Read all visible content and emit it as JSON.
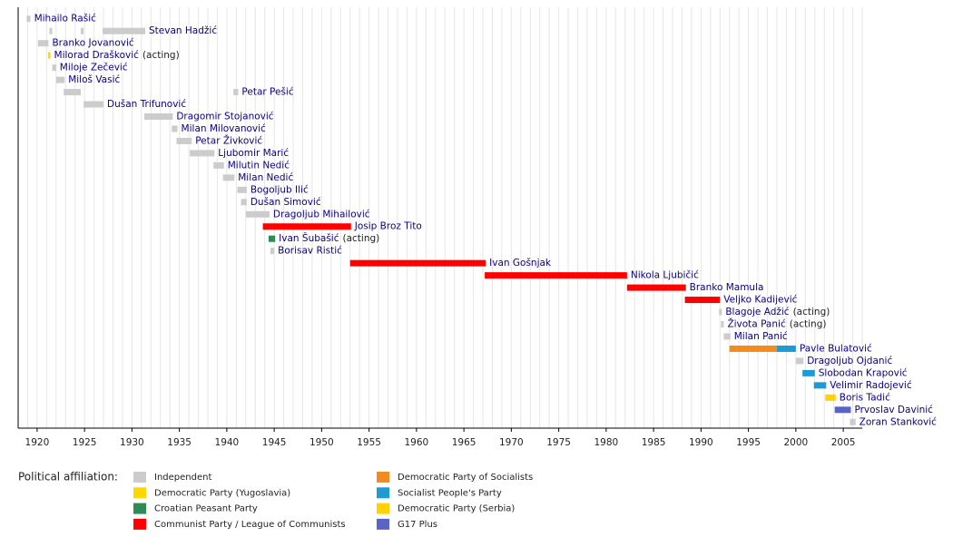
{
  "chart_data": {
    "type": "timeline",
    "xlim": [
      1918,
      2007
    ],
    "xticks": [
      1920,
      1925,
      1930,
      1935,
      1940,
      1945,
      1950,
      1955,
      1960,
      1965,
      1970,
      1975,
      1980,
      1985,
      1990,
      1995,
      2000,
      2005
    ],
    "minor_grid_step": 1,
    "legend_title": "Political affiliation:",
    "parties": [
      {
        "name": "Independent",
        "color": "#cccccc"
      },
      {
        "name": "Democratic Party (Yugoslavia)",
        "color": "#ffd700"
      },
      {
        "name": "Croatian Peasant Party",
        "color": "#2e8b57"
      },
      {
        "name": "Communist Party / League of Communists",
        "color": "#ff0000"
      },
      {
        "name": "Democratic Party of Socialists",
        "color": "#f28c1e"
      },
      {
        "name": "Socialist People's Party",
        "color": "#1e9bd2"
      },
      {
        "name": "Democratic Party (Serbia)",
        "color": "#ffd200"
      },
      {
        "name": "G17 Plus",
        "color": "#5a64c8"
      }
    ],
    "entries": [
      {
        "name": "Mihailo Rašić",
        "segments": [
          {
            "start": 1918.9,
            "end": 1919.3,
            "party": 0
          }
        ]
      },
      {
        "name": "Stevan Hadžić",
        "segments": [
          {
            "start": 1921.3,
            "end": 1921.6,
            "party": 0
          },
          {
            "start": 1924.6,
            "end": 1924.9,
            "party": 0
          },
          {
            "start": 1926.9,
            "end": 1931.4,
            "party": 0
          }
        ]
      },
      {
        "name": "Branko Jovanović",
        "segments": [
          {
            "start": 1920.1,
            "end": 1921.2,
            "party": 0
          }
        ]
      },
      {
        "name": "Milorad Drašković",
        "note": "(acting)",
        "segments": [
          {
            "start": 1921.15,
            "end": 1921.4,
            "party": 1
          }
        ]
      },
      {
        "name": "Miloje Zečević",
        "segments": [
          {
            "start": 1921.6,
            "end": 1922.0,
            "party": 0
          }
        ]
      },
      {
        "name": "Miloš Vasić",
        "segments": [
          {
            "start": 1922.0,
            "end": 1922.9,
            "party": 0
          }
        ]
      },
      {
        "name": "Petar Pešić",
        "segments": [
          {
            "start": 1922.8,
            "end": 1924.6,
            "party": 0
          },
          {
            "start": 1940.7,
            "end": 1941.2,
            "party": 0
          }
        ]
      },
      {
        "name": "Dušan Trifunović",
        "segments": [
          {
            "start": 1924.9,
            "end": 1927.0,
            "party": 0
          }
        ]
      },
      {
        "name": "Dragomir Stojanović",
        "segments": [
          {
            "start": 1931.3,
            "end": 1934.3,
            "party": 0
          }
        ]
      },
      {
        "name": "Milan Milovanović",
        "segments": [
          {
            "start": 1934.2,
            "end": 1934.8,
            "party": 0
          }
        ]
      },
      {
        "name": "Petar Živković",
        "segments": [
          {
            "start": 1934.7,
            "end": 1936.3,
            "party": 0
          }
        ]
      },
      {
        "name": "Ljubomir Marić",
        "segments": [
          {
            "start": 1936.1,
            "end": 1938.7,
            "party": 0
          }
        ]
      },
      {
        "name": "Milutin Nedić",
        "segments": [
          {
            "start": 1938.6,
            "end": 1939.7,
            "party": 0
          }
        ]
      },
      {
        "name": "Milan Nedić",
        "segments": [
          {
            "start": 1939.6,
            "end": 1940.8,
            "party": 0
          }
        ]
      },
      {
        "name": "Bogoljub Ilić",
        "segments": [
          {
            "start": 1941.1,
            "end": 1942.1,
            "party": 0
          }
        ]
      },
      {
        "name": "Dušan Simović",
        "segments": [
          {
            "start": 1941.5,
            "end": 1942.1,
            "party": 0
          }
        ]
      },
      {
        "name": "Dragoljub Mihailović",
        "segments": [
          {
            "start": 1942.0,
            "end": 1944.5,
            "party": 0
          }
        ]
      },
      {
        "name": "Josip Broz Tito",
        "segments": [
          {
            "start": 1943.8,
            "end": 1953.1,
            "party": 3
          }
        ]
      },
      {
        "name": "Ivan Šubašić",
        "note": "(acting)",
        "segments": [
          {
            "start": 1944.4,
            "end": 1945.1,
            "party": 2
          }
        ]
      },
      {
        "name": "Borisav Ristić",
        "segments": [
          {
            "start": 1944.6,
            "end": 1945.0,
            "party": 0
          }
        ]
      },
      {
        "name": "Ivan Gošnjak",
        "segments": [
          {
            "start": 1953.0,
            "end": 1967.3,
            "party": 3
          }
        ]
      },
      {
        "name": "Nikola Ljubičić",
        "segments": [
          {
            "start": 1967.2,
            "end": 1982.2,
            "party": 3
          }
        ]
      },
      {
        "name": "Branko Mamula",
        "segments": [
          {
            "start": 1982.2,
            "end": 1988.4,
            "party": 3
          }
        ]
      },
      {
        "name": "Veljko Kadijević",
        "segments": [
          {
            "start": 1988.3,
            "end": 1992.0,
            "party": 3
          }
        ]
      },
      {
        "name": "Blagoje Adžić",
        "note": "(acting)",
        "segments": [
          {
            "start": 1991.9,
            "end": 1992.2,
            "party": 0
          }
        ]
      },
      {
        "name": "Života Panić",
        "note": "(acting)",
        "segments": [
          {
            "start": 1992.1,
            "end": 1992.4,
            "party": 0
          }
        ]
      },
      {
        "name": "Milan Panić",
        "segments": [
          {
            "start": 1992.4,
            "end": 1993.1,
            "party": 0
          }
        ]
      },
      {
        "name": "Pavle Bulatović",
        "segments": [
          {
            "start": 1993.0,
            "end": 1998.0,
            "party": 4
          },
          {
            "start": 1998.0,
            "end": 2000.0,
            "party": 5
          }
        ]
      },
      {
        "name": "Dragoljub Ojdanić",
        "segments": [
          {
            "start": 2000.0,
            "end": 2000.8,
            "party": 0
          }
        ]
      },
      {
        "name": "Slobodan Krapović",
        "segments": [
          {
            "start": 2000.7,
            "end": 2002.0,
            "party": 5
          }
        ]
      },
      {
        "name": "Velimir Radojević",
        "segments": [
          {
            "start": 2001.9,
            "end": 2003.2,
            "party": 5
          }
        ]
      },
      {
        "name": "Boris Tadić",
        "segments": [
          {
            "start": 2003.1,
            "end": 2004.2,
            "party": 6
          }
        ]
      },
      {
        "name": "Prvoslav Davinić",
        "segments": [
          {
            "start": 2004.1,
            "end": 2005.8,
            "party": 7
          }
        ]
      },
      {
        "name": "Zoran Stanković",
        "segments": [
          {
            "start": 2005.7,
            "end": 2006.3,
            "party": 0
          }
        ]
      }
    ]
  }
}
